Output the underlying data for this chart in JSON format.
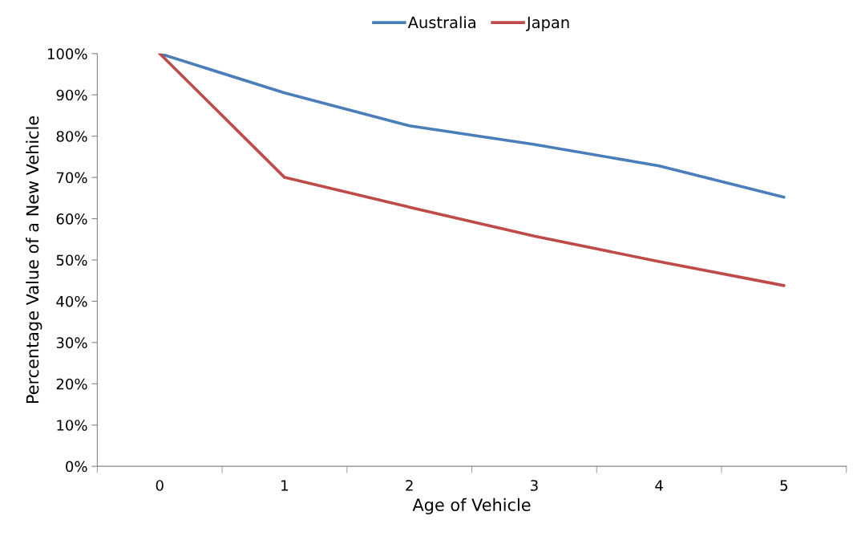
{
  "chart_data": {
    "type": "line",
    "xlabel": "Age of Vehicle",
    "ylabel": "Percentage Value of a New Vehicle",
    "categories": [
      "0",
      "1",
      "2",
      "3",
      "4",
      "5"
    ],
    "series": [
      {
        "name": "Australia",
        "color": "#4a7ebb",
        "values": [
          100,
          90.5,
          82.5,
          78,
          72.8,
          65.2
        ]
      },
      {
        "name": "Japan",
        "color": "#be4b48",
        "values": [
          100,
          70,
          62.8,
          55.8,
          49.6,
          43.8
        ]
      }
    ],
    "ylim": [
      0,
      100
    ],
    "yticks": [
      {
        "value": 0,
        "label": "0%"
      },
      {
        "value": 10,
        "label": "10%"
      },
      {
        "value": 20,
        "label": "20%"
      },
      {
        "value": 30,
        "label": "30%"
      },
      {
        "value": 40,
        "label": "40%"
      },
      {
        "value": 50,
        "label": "50%"
      },
      {
        "value": 60,
        "label": "60%"
      },
      {
        "value": 70,
        "label": "70%"
      },
      {
        "value": 80,
        "label": "80%"
      },
      {
        "value": 90,
        "label": "90%"
      },
      {
        "value": 100,
        "label": "100%"
      }
    ],
    "grid": false,
    "legend": "top",
    "marker": "none",
    "line_style": "solid"
  }
}
